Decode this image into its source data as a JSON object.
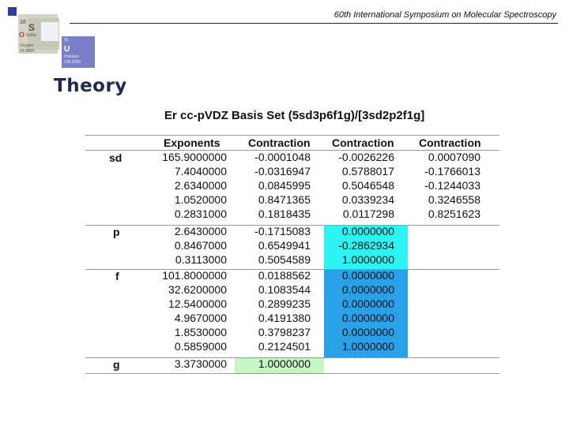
{
  "header": {
    "conference": "60th International Symposium on Molecular Spectroscopy"
  },
  "decor": {
    "tile_number": "16",
    "tile_symbol": "S",
    "tile_o": "O",
    "tile_name": "Sulfur",
    "tile_oxygen": "Oxygen",
    "tile_oxygen_mass": "15.9994",
    "tile_u_number": "92",
    "tile_u": "U",
    "tile_u_name": "Uranium",
    "tile_u_mass": "238.0289"
  },
  "section": {
    "title": "Theory"
  },
  "table": {
    "title": "Er cc-pVDZ Basis Set (5sd3p6f1g)/[3sd2p2f1g]",
    "columns": [
      "Exponents",
      "Contraction",
      "Contraction",
      "Contraction"
    ],
    "shells": [
      {
        "label": "sd",
        "rows": [
          [
            "165.9000000",
            "-0.0001048",
            "-0.0026226",
            "0.0007090"
          ],
          [
            "7.4040000",
            "-0.0316947",
            "0.5788017",
            "-0.1766013"
          ],
          [
            "2.6340000",
            "0.0845995",
            "0.5046548",
            "-0.1244033"
          ],
          [
            "1.0520000",
            "0.8471365",
            "0.0339234",
            "0.3246558"
          ],
          [
            "0.2831000",
            "0.1818435",
            "0.0117298",
            "0.8251623"
          ]
        ]
      },
      {
        "label": "p",
        "rows": [
          [
            "2.6430000",
            "-0.1715083",
            "0.0000000",
            ""
          ],
          [
            "0.8467000",
            "0.6549941",
            "-0.2862934",
            ""
          ],
          [
            "0.3113000",
            "0.5054589",
            "1.0000000",
            ""
          ]
        ]
      },
      {
        "label": "f",
        "rows": [
          [
            "101.8000000",
            "0.0188562",
            "0.0000000",
            ""
          ],
          [
            "32.6200000",
            "0.1083544",
            "0.0000000",
            ""
          ],
          [
            "12.5400000",
            "0.2899235",
            "0.0000000",
            ""
          ],
          [
            "4.9670000",
            "0.4191380",
            "0.0000000",
            ""
          ],
          [
            "1.8530000",
            "0.3798237",
            "0.0000000",
            ""
          ],
          [
            "0.5859000",
            "0.2124501",
            "1.0000000",
            ""
          ]
        ]
      },
      {
        "label": "g",
        "rows": [
          [
            "3.3730000",
            "1.0000000",
            "",
            ""
          ]
        ]
      }
    ],
    "highlight_colors": {
      "p_col3": "#2ff3f3",
      "f_col3": "#2aa0e6",
      "g_col2": "#c5f6c3"
    }
  }
}
